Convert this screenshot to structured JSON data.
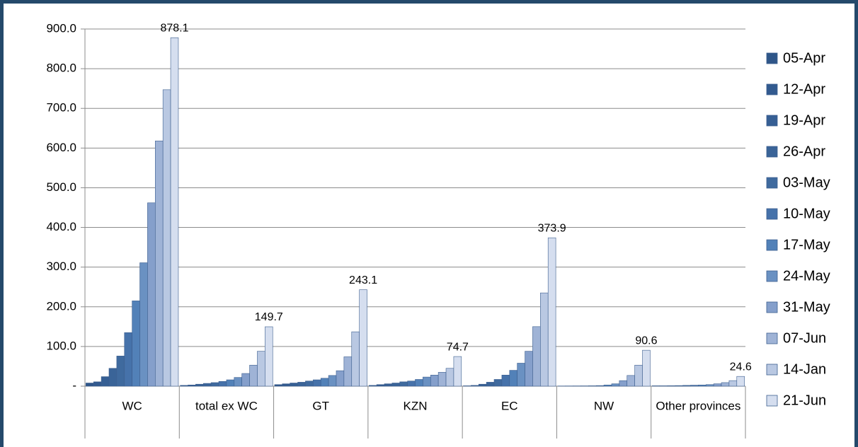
{
  "chart_data": {
    "type": "bar",
    "categories": [
      "WC",
      "total ex WC",
      "GT",
      "KZN",
      "EC",
      "NW",
      "Other provinces"
    ],
    "series": [
      {
        "name": "05-Apr",
        "color": "#2f5689",
        "values": [
          8,
          2,
          4,
          2,
          1,
          0.5,
          1
        ]
      },
      {
        "name": "12-Apr",
        "color": "#325a8f",
        "values": [
          11,
          3,
          6,
          4,
          2,
          0.6,
          1
        ]
      },
      {
        "name": "19-Apr",
        "color": "#365f94",
        "values": [
          24,
          5,
          8,
          6,
          5,
          0.7,
          1.2
        ]
      },
      {
        "name": "26-Apr",
        "color": "#3a6498",
        "values": [
          45,
          7,
          10,
          8,
          10,
          0.8,
          1.5
        ]
      },
      {
        "name": "03-May",
        "color": "#3f6a9e",
        "values": [
          76,
          9,
          13,
          11,
          17,
          1,
          2
        ]
      },
      {
        "name": "10-May",
        "color": "#4672aa",
        "values": [
          135,
          12,
          16,
          13,
          28,
          1.5,
          2.5
        ]
      },
      {
        "name": "17-May",
        "color": "#5281b8",
        "values": [
          215,
          16,
          20,
          17,
          40,
          3,
          3
        ]
      },
      {
        "name": "24-May",
        "color": "#6a91c2",
        "values": [
          311,
          22,
          27,
          23,
          58,
          6,
          4
        ]
      },
      {
        "name": "31-May",
        "color": "#859fcb",
        "values": [
          462,
          32,
          39,
          28,
          88,
          14,
          6
        ]
      },
      {
        "name": "07-Jun",
        "color": "#9fb3d6",
        "values": [
          618,
          53,
          74,
          35,
          150,
          27,
          9
        ]
      },
      {
        "name": "14-Jan",
        "color": "#b9c8e2",
        "values": [
          747,
          88,
          137,
          45,
          235,
          53,
          14
        ]
      },
      {
        "name": "21-Jun",
        "color": "#d5deef",
        "values": [
          878.1,
          149.7,
          243.1,
          74.7,
          373.9,
          90.6,
          24.6
        ],
        "data_labels": true
      }
    ],
    "ylim": [
      0,
      900
    ],
    "yticks": [
      {
        "value": 0,
        "label": "-"
      },
      {
        "value": 100,
        "label": "100.0"
      },
      {
        "value": 200,
        "label": "200.0"
      },
      {
        "value": 300,
        "label": "300.0"
      },
      {
        "value": 400,
        "label": "400.0"
      },
      {
        "value": 500,
        "label": "500.0"
      },
      {
        "value": 600,
        "label": "600.0"
      },
      {
        "value": 700,
        "label": "700.0"
      },
      {
        "value": 800,
        "label": "800.0"
      },
      {
        "value": 900,
        "label": "900.0"
      }
    ],
    "grid": true,
    "legend": "right"
  }
}
